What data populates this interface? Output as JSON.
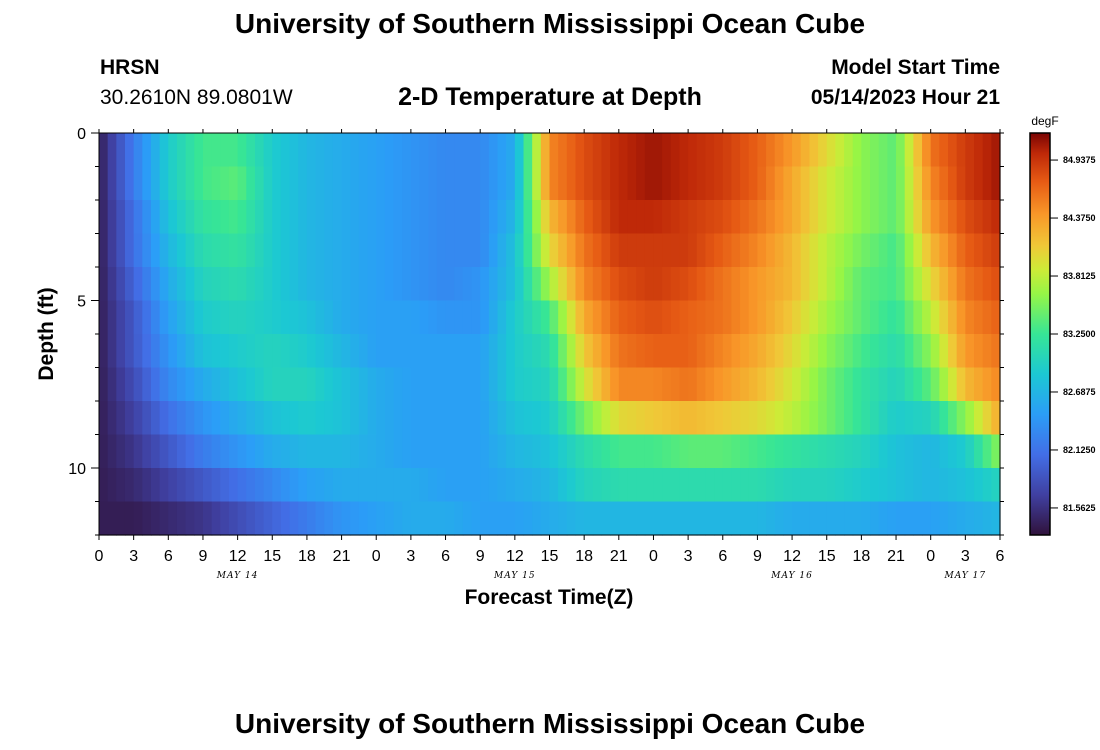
{
  "header": {
    "title": "University of Southern Mississippi Ocean Cube",
    "station_name": "HRSN",
    "station_coords": "30.2610N  89.0801W",
    "subtitle": "2-D Temperature at Depth",
    "start_label": "Model Start Time",
    "start_value": "05/14/2023 Hour 21"
  },
  "footer": {
    "title": "University of Southern Mississippi Ocean Cube"
  },
  "chart_data": {
    "type": "heatmap",
    "title": "2-D Temperature at Depth",
    "xlabel": "Forecast Time(Z)",
    "ylabel": "Depth (ft)",
    "x_ticks": [
      "0",
      "3",
      "6",
      "9",
      "12",
      "15",
      "18",
      "21",
      "0",
      "3",
      "6",
      "9",
      "12",
      "15",
      "18",
      "21",
      "0",
      "3",
      "6",
      "9",
      "12",
      "15",
      "18",
      "21",
      "0",
      "3",
      "6"
    ],
    "x_range_hours": [
      0,
      78
    ],
    "day_labels": [
      {
        "label": "MAY 14",
        "hour": 12
      },
      {
        "label": "MAY 15",
        "hour": 36
      },
      {
        "label": "MAY 16",
        "hour": 60
      },
      {
        "label": "MAY 17",
        "hour": 75
      }
    ],
    "y_ticks": [
      0,
      5,
      10
    ],
    "y_range": [
      0,
      12
    ],
    "y_inverted": true,
    "depth_layers_ft": [
      0.5,
      1.5,
      2.5,
      3.5,
      4.5,
      5.5,
      6.5,
      7.5,
      8.5,
      9.5,
      10.5,
      11.5
    ],
    "colorbar": {
      "unit": "degF",
      "min": 81.3,
      "max": 85.2,
      "tick_labels": [
        "84.9375",
        "84.3750",
        "83.8125",
        "83.2500",
        "82.6875",
        "82.1250",
        "81.5625"
      ],
      "tick_values": [
        84.9375,
        84.375,
        83.8125,
        83.25,
        82.6875,
        82.125,
        81.5625
      ]
    },
    "hours": [
      0,
      3,
      6,
      9,
      12,
      15,
      18,
      21,
      24,
      27,
      30,
      33,
      36,
      39,
      42,
      45,
      48,
      51,
      54,
      57,
      60,
      63,
      66,
      69,
      72,
      75,
      78
    ],
    "values": [
      [
        81.4,
        82.2,
        82.9,
        83.3,
        83.3,
        82.9,
        82.7,
        82.6,
        82.5,
        82.4,
        82.3,
        82.3,
        82.6,
        84.5,
        84.8,
        85.0,
        85.1,
        85.0,
        84.9,
        84.7,
        84.4,
        84.0,
        83.6,
        83.4,
        84.6,
        84.9,
        85.1
      ],
      [
        81.4,
        82.2,
        82.9,
        83.3,
        83.4,
        82.9,
        82.7,
        82.6,
        82.5,
        82.4,
        82.3,
        82.3,
        82.6,
        84.5,
        84.8,
        85.0,
        85.1,
        85.0,
        84.9,
        84.7,
        84.3,
        83.9,
        83.6,
        83.4,
        84.5,
        84.9,
        85.1
      ],
      [
        81.4,
        82.1,
        82.8,
        83.2,
        83.3,
        82.9,
        82.7,
        82.6,
        82.5,
        82.4,
        82.3,
        82.3,
        82.7,
        84.2,
        84.7,
        85.0,
        85.0,
        84.9,
        84.8,
        84.6,
        84.3,
        83.9,
        83.6,
        83.4,
        84.4,
        84.8,
        85.0
      ],
      [
        81.4,
        82.1,
        82.7,
        83.1,
        83.2,
        82.9,
        82.7,
        82.6,
        82.5,
        82.4,
        82.3,
        82.3,
        82.8,
        84.0,
        84.6,
        84.9,
        84.9,
        84.9,
        84.7,
        84.5,
        84.2,
        83.8,
        83.5,
        83.3,
        84.2,
        84.7,
        84.9
      ],
      [
        81.4,
        82.0,
        82.6,
        83.0,
        83.1,
        82.9,
        82.7,
        82.6,
        82.5,
        82.4,
        82.3,
        82.4,
        82.8,
        83.7,
        84.5,
        84.8,
        84.9,
        84.8,
        84.6,
        84.4,
        84.2,
        83.8,
        83.4,
        83.3,
        84.0,
        84.6,
        84.8
      ],
      [
        81.4,
        81.9,
        82.5,
        82.9,
        83.0,
        82.9,
        82.8,
        82.6,
        82.5,
        82.5,
        82.4,
        82.4,
        82.9,
        83.3,
        84.3,
        84.7,
        84.8,
        84.7,
        84.6,
        84.4,
        84.1,
        83.7,
        83.4,
        83.2,
        83.8,
        84.5,
        84.7
      ],
      [
        81.4,
        81.9,
        82.4,
        82.8,
        82.9,
        83.0,
        82.9,
        82.7,
        82.5,
        82.5,
        82.5,
        82.5,
        82.9,
        83.1,
        84.1,
        84.6,
        84.7,
        84.7,
        84.5,
        84.3,
        84.0,
        83.6,
        83.3,
        83.1,
        83.6,
        84.4,
        84.6
      ],
      [
        81.4,
        81.8,
        82.3,
        82.6,
        82.8,
        83.0,
        83.0,
        82.8,
        82.6,
        82.5,
        82.5,
        82.5,
        82.9,
        83.0,
        83.9,
        84.5,
        84.5,
        84.6,
        84.4,
        84.2,
        83.9,
        83.5,
        83.2,
        83.0,
        83.4,
        84.2,
        84.5
      ],
      [
        81.4,
        81.7,
        82.1,
        82.4,
        82.6,
        82.8,
        82.9,
        82.8,
        82.6,
        82.5,
        82.5,
        82.5,
        82.8,
        82.9,
        83.5,
        84.0,
        84.1,
        84.2,
        84.1,
        84.0,
        83.8,
        83.5,
        83.2,
        82.9,
        83.0,
        83.6,
        84.3
      ],
      [
        81.4,
        81.6,
        81.9,
        82.2,
        82.4,
        82.6,
        82.7,
        82.7,
        82.6,
        82.5,
        82.5,
        82.5,
        82.7,
        82.8,
        83.1,
        83.3,
        83.3,
        83.4,
        83.4,
        83.3,
        83.2,
        83.1,
        83.0,
        82.8,
        82.7,
        82.9,
        83.6
      ],
      [
        81.4,
        81.5,
        81.7,
        81.9,
        82.1,
        82.3,
        82.5,
        82.6,
        82.6,
        82.6,
        82.5,
        82.5,
        82.6,
        82.7,
        83.0,
        83.1,
        83.1,
        83.1,
        83.1,
        83.1,
        83.0,
        83.0,
        82.9,
        82.8,
        82.7,
        82.8,
        83.0
      ],
      [
        81.4,
        81.4,
        81.5,
        81.6,
        81.8,
        82.0,
        82.2,
        82.4,
        82.5,
        82.6,
        82.6,
        82.5,
        82.5,
        82.6,
        82.7,
        82.7,
        82.7,
        82.7,
        82.7,
        82.7,
        82.6,
        82.6,
        82.6,
        82.5,
        82.5,
        82.6,
        82.7
      ]
    ]
  }
}
